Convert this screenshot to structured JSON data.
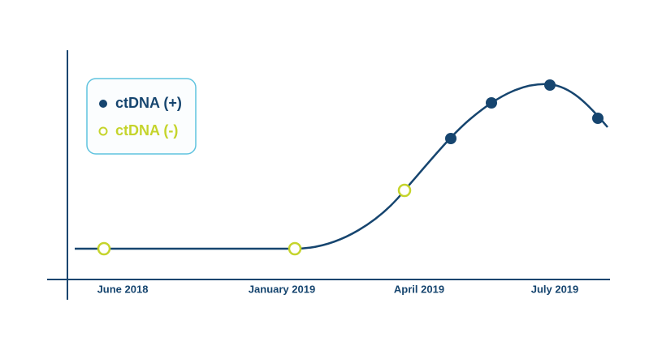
{
  "legend": {
    "items": [
      {
        "label": "ctDNA (+)"
      },
      {
        "label": "ctDNA (-)"
      }
    ]
  },
  "x_axis": {
    "labels": [
      "June 2018",
      "January 2019",
      "April 2019",
      "July 2019"
    ]
  }
}
